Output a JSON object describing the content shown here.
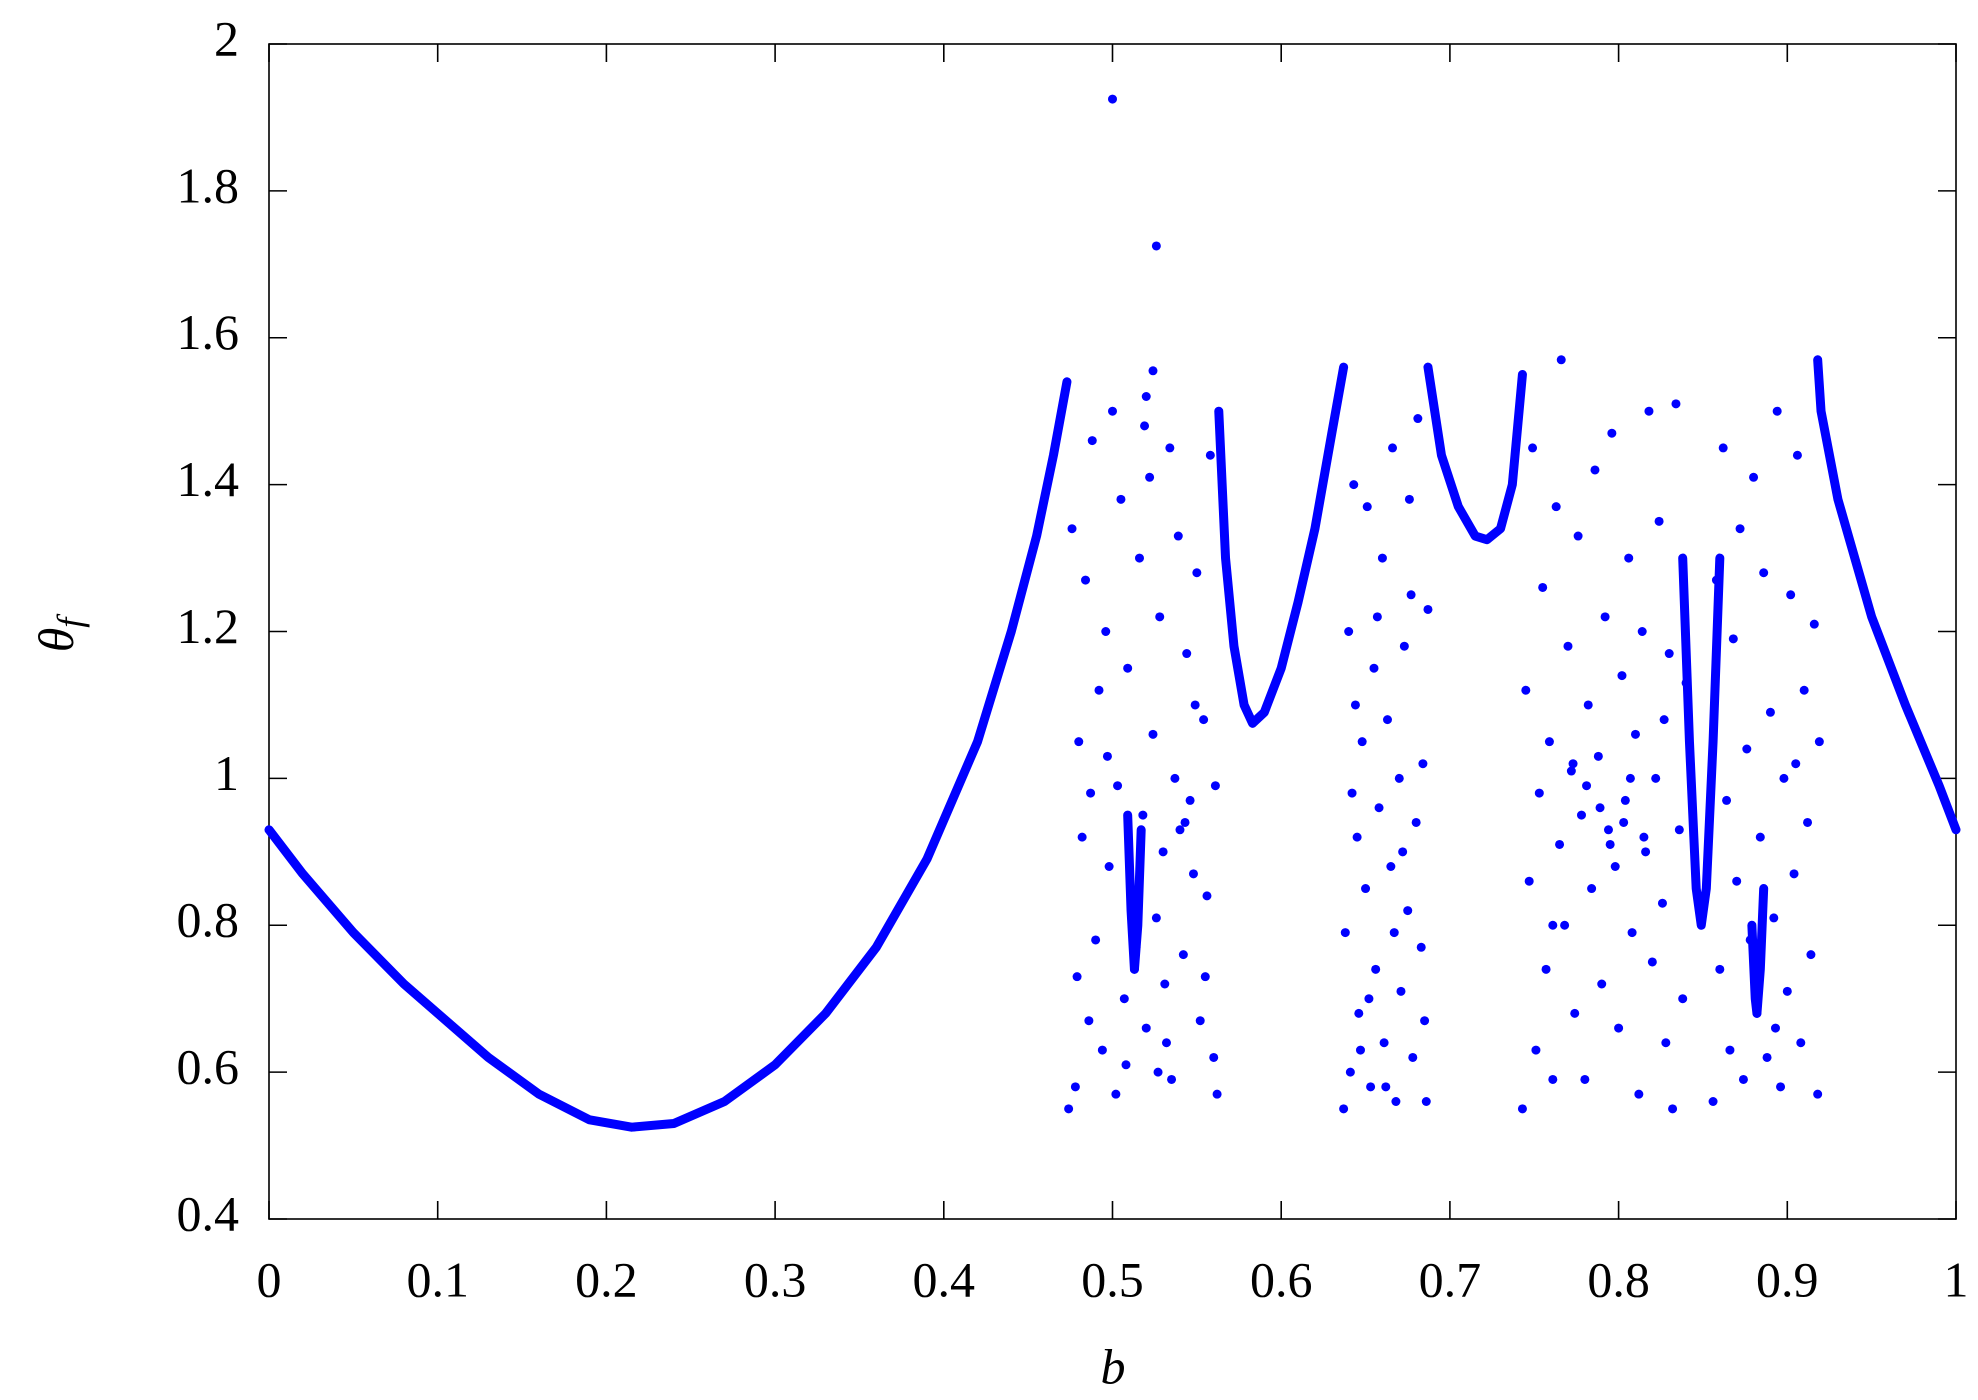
{
  "chart_data": {
    "type": "scatter",
    "x_label": "b",
    "y_label": {
      "symbol": "θ",
      "subscript": "f"
    },
    "xlim": [
      0,
      1
    ],
    "ylim": [
      0.4,
      2
    ],
    "xticks": [
      0,
      0.1,
      0.2,
      0.3,
      0.4,
      0.5,
      0.6,
      0.7,
      0.8,
      0.9,
      1
    ],
    "yticks": [
      0.4,
      0.6,
      0.8,
      1,
      1.2,
      1.4,
      1.6,
      1.8,
      2
    ],
    "grid": false,
    "series": [
      {
        "color": "#0000ff",
        "style": "line",
        "x": [
          0,
          0.02,
          0.05,
          0.08,
          0.1,
          0.13,
          0.16,
          0.19,
          0.215,
          0.24,
          0.27,
          0.3,
          0.33,
          0.36,
          0.39,
          0.42,
          0.44,
          0.455,
          0.465,
          0.473,
          null,
          0.563,
          0.567,
          0.572,
          0.578,
          0.583,
          0.59,
          0.6,
          0.61,
          0.62,
          0.63,
          0.637,
          null,
          0.687,
          0.695,
          0.705,
          0.715,
          0.722,
          0.73,
          0.737,
          0.743,
          null,
          0.918,
          0.92,
          0.93,
          0.95,
          0.97,
          0.99,
          1,
          null,
          0.509,
          0.511,
          0.513,
          0.515,
          0.517,
          null,
          0.838,
          0.842,
          0.846,
          0.849,
          0.852,
          0.856,
          0.86,
          null,
          0.879,
          0.881,
          0.882,
          0.884,
          0.886
        ],
        "values": [
          0.93,
          0.87,
          0.79,
          0.72,
          0.68,
          0.62,
          0.57,
          0.535,
          0.525,
          0.53,
          0.56,
          0.61,
          0.68,
          0.77,
          0.89,
          1.05,
          1.2,
          1.33,
          1.44,
          1.54,
          null,
          1.5,
          1.3,
          1.18,
          1.1,
          1.075,
          1.09,
          1.15,
          1.24,
          1.34,
          1.47,
          1.56,
          null,
          1.56,
          1.44,
          1.37,
          1.33,
          1.325,
          1.34,
          1.4,
          1.55,
          null,
          1.57,
          1.5,
          1.38,
          1.22,
          1.1,
          0.99,
          0.93,
          null,
          0.95,
          0.82,
          0.74,
          0.8,
          0.93,
          null,
          1.3,
          1.05,
          0.85,
          0.8,
          0.85,
          1.05,
          1.3,
          null,
          0.8,
          0.7,
          0.68,
          0.74,
          0.85
        ]
      },
      {
        "color": "#0000ff",
        "style": "points",
        "x": [
          0.474,
          0.476,
          0.478,
          0.48,
          0.482,
          0.484,
          0.486,
          0.488,
          0.49,
          0.492,
          0.494,
          0.496,
          0.498,
          0.5,
          0.502,
          0.503,
          0.505,
          0.507,
          0.509,
          0.511,
          0.513,
          0.514,
          0.516,
          0.518,
          0.52,
          0.522,
          0.524,
          0.526,
          0.528,
          0.53,
          0.532,
          0.534,
          0.535,
          0.537,
          0.539,
          0.54,
          0.542,
          0.544,
          0.546,
          0.548,
          0.55,
          0.552,
          0.554,
          0.556,
          0.558,
          0.56,
          0.561,
          0.562,
          0.479,
          0.497,
          0.508,
          0.519,
          0.531,
          0.543,
          0.549,
          0.555,
          0.487,
          0.527,
          0.637,
          0.638,
          0.64,
          0.641,
          0.643,
          0.645,
          0.646,
          0.648,
          0.65,
          0.651,
          0.653,
          0.655,
          0.656,
          0.658,
          0.66,
          0.661,
          0.663,
          0.665,
          0.666,
          0.668,
          0.67,
          0.671,
          0.673,
          0.675,
          0.676,
          0.678,
          0.68,
          0.681,
          0.683,
          0.685,
          0.686,
          0.687,
          0.642,
          0.652,
          0.662,
          0.672,
          0.677,
          0.667,
          0.657,
          0.647,
          0.684,
          0.644,
          0.743,
          0.745,
          0.747,
          0.749,
          0.751,
          0.753,
          0.755,
          0.757,
          0.759,
          0.761,
          0.763,
          0.765,
          0.766,
          0.768,
          0.77,
          0.772,
          0.774,
          0.776,
          0.778,
          0.78,
          0.782,
          0.784,
          0.786,
          0.788,
          0.79,
          0.792,
          0.794,
          0.796,
          0.798,
          0.8,
          0.802,
          0.804,
          0.806,
          0.808,
          0.81,
          0.812,
          0.814,
          0.816,
          0.818,
          0.82,
          0.822,
          0.824,
          0.826,
          0.828,
          0.83,
          0.832,
          0.834,
          0.836,
          0.838,
          0.84,
          0.856,
          0.858,
          0.86,
          0.862,
          0.864,
          0.866,
          0.868,
          0.87,
          0.872,
          0.874,
          0.876,
          0.878,
          0.88,
          0.882,
          0.884,
          0.886,
          0.888,
          0.89,
          0.892,
          0.894,
          0.896,
          0.898,
          0.9,
          0.902,
          0.904,
          0.906,
          0.908,
          0.91,
          0.912,
          0.914,
          0.916,
          0.918,
          0.919,
          0.773,
          0.789,
          0.795,
          0.803,
          0.807,
          0.815,
          0.781,
          0.761,
          0.827,
          0.893,
          0.905,
          0.5,
          0.526,
          0.524,
          0.52
        ],
        "values": [
          0.55,
          1.34,
          0.58,
          1.05,
          0.92,
          1.27,
          0.67,
          1.46,
          0.78,
          1.12,
          0.63,
          1.2,
          0.88,
          1.5,
          0.57,
          0.99,
          1.38,
          0.7,
          1.15,
          0.83,
          0.74,
          0.77,
          1.3,
          0.95,
          0.66,
          1.41,
          1.06,
          0.81,
          1.22,
          0.9,
          0.64,
          1.45,
          0.59,
          1,
          1.33,
          0.93,
          0.76,
          1.17,
          0.97,
          0.87,
          1.28,
          0.67,
          1.08,
          0.84,
          1.44,
          0.62,
          0.99,
          0.57,
          0.73,
          1.03,
          0.61,
          1.48,
          0.72,
          0.94,
          1.1,
          0.73,
          0.98,
          0.6,
          0.55,
          0.79,
          1.2,
          0.6,
          1.4,
          0.92,
          0.68,
          1.05,
          0.85,
          1.37,
          0.58,
          1.15,
          0.74,
          0.96,
          1.3,
          0.64,
          1.08,
          0.88,
          1.45,
          0.56,
          1,
          0.71,
          1.18,
          0.82,
          1.38,
          0.62,
          0.94,
          1.49,
          0.77,
          0.67,
          0.56,
          1.23,
          0.98,
          0.7,
          0.58,
          0.9,
          1.25,
          0.79,
          1.22,
          0.63,
          1.02,
          1.1,
          0.55,
          1.12,
          0.86,
          1.45,
          0.63,
          0.98,
          1.26,
          0.74,
          1.05,
          0.59,
          1.37,
          0.91,
          1.57,
          0.8,
          1.18,
          1.01,
          0.68,
          1.33,
          0.95,
          0.59,
          1.1,
          0.85,
          1.42,
          1.03,
          0.72,
          1.22,
          0.93,
          1.47,
          0.88,
          0.66,
          1.14,
          0.97,
          1.3,
          0.79,
          1.06,
          0.57,
          1.2,
          0.9,
          1.5,
          0.75,
          1,
          1.35,
          0.83,
          0.64,
          1.17,
          0.55,
          1.51,
          0.93,
          0.7,
          1.13,
          0.56,
          1.27,
          0.74,
          1.45,
          0.97,
          0.63,
          1.19,
          0.86,
          1.34,
          0.59,
          1.04,
          0.78,
          1.41,
          0.68,
          0.92,
          1.28,
          0.62,
          1.09,
          0.81,
          1.5,
          0.58,
          1,
          0.71,
          1.25,
          0.87,
          1.44,
          0.64,
          1.12,
          0.94,
          0.76,
          1.21,
          0.57,
          1.05,
          1.02,
          0.96,
          0.91,
          0.94,
          1,
          0.92,
          0.99,
          0.8,
          1.08,
          0.66,
          1.02,
          1.925,
          1.725,
          1.555,
          1.52
        ]
      }
    ]
  }
}
